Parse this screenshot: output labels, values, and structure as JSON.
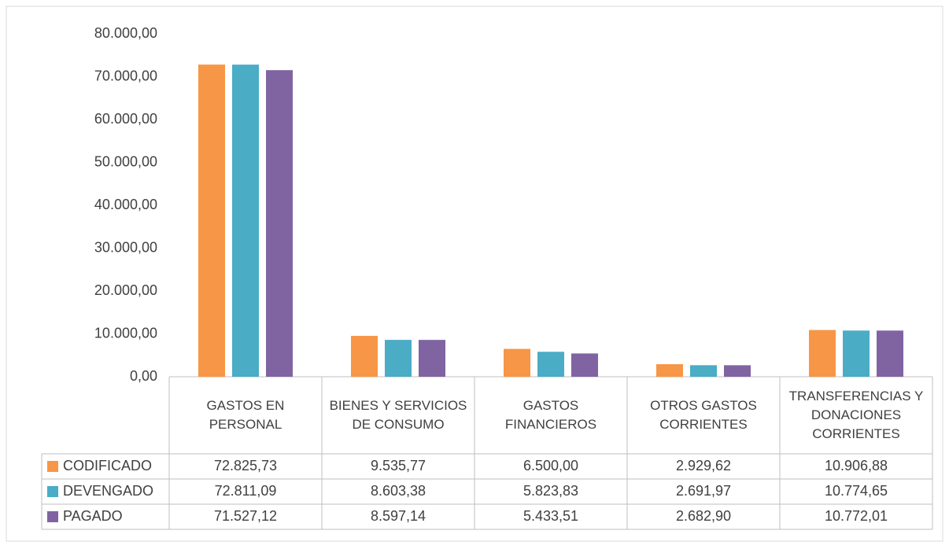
{
  "chart_data": {
    "type": "bar",
    "categories": [
      "GASTOS EN PERSONAL",
      "BIENES Y SERVICIOS DE CONSUMO",
      "GASTOS FINANCIEROS",
      "OTROS GASTOS CORRIENTES",
      "TRANSFERENCIAS Y DONACIONES CORRIENTES"
    ],
    "series": [
      {
        "name": "CODIFICADO",
        "color": "#F79646",
        "values": [
          72825.73,
          9535.77,
          6500.0,
          2929.62,
          10906.88
        ],
        "value_labels": [
          "72.825,73",
          "9.535,77",
          "6.500,00",
          "2.929,62",
          "10.906,88"
        ]
      },
      {
        "name": "DEVENGADO",
        "color": "#4BACC6",
        "values": [
          72811.09,
          8603.38,
          5823.83,
          2691.97,
          10774.65
        ],
        "value_labels": [
          "72.811,09",
          "8.603,38",
          "5.823,83",
          "2.691,97",
          "10.774,65"
        ]
      },
      {
        "name": "PAGADO",
        "color": "#8064A2",
        "values": [
          71527.12,
          8597.14,
          5433.51,
          2682.9,
          10772.01
        ],
        "value_labels": [
          "71.527,12",
          "8.597,14",
          "5.433,51",
          "2.682,90",
          "10.772,01"
        ]
      }
    ],
    "ylim": [
      0,
      80000
    ],
    "yticks": [
      {
        "value": 0,
        "label": "0,00"
      },
      {
        "value": 10000,
        "label": "10.000,00"
      },
      {
        "value": 20000,
        "label": "20.000,00"
      },
      {
        "value": 30000,
        "label": "30.000,00"
      },
      {
        "value": 40000,
        "label": "40.000,00"
      },
      {
        "value": 50000,
        "label": "50.000,00"
      },
      {
        "value": 60000,
        "label": "60.000,00"
      },
      {
        "value": 70000,
        "label": "70.000,00"
      },
      {
        "value": 80000,
        "label": "80.000,00"
      }
    ]
  }
}
